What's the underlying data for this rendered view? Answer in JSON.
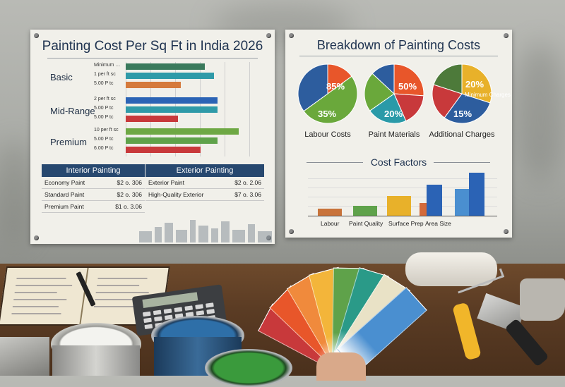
{
  "left_poster": {
    "title": "Painting Cost Per Sq Ft in India 2026",
    "tiers": [
      {
        "name": "Basic",
        "rows": [
          {
            "tag": "Minimum …",
            "color": "#3a7a5c",
            "value": 0.68
          },
          {
            "tag": "1 per ft sc",
            "color": "#2f9aa8",
            "value": 0.76
          },
          {
            "tag": "5.00 P tc",
            "color": "#d57a3c",
            "value": 0.47
          }
        ]
      },
      {
        "name": "Mid-Range",
        "rows": [
          {
            "tag": "2 per ft sc",
            "color": "#2b63b5",
            "value": 0.79
          },
          {
            "tag": "5.00 P tc",
            "color": "#2f9aa8",
            "value": 0.79
          },
          {
            "tag": "5.00 P tc",
            "color": "#c8393b",
            "value": 0.45
          }
        ]
      },
      {
        "name": "Premium",
        "rows": [
          {
            "tag": "10 per ft sc",
            "color": "#6ea844",
            "value": 0.97
          },
          {
            "tag": "5.00 P tc",
            "color": "#5fa24a",
            "value": 0.79
          },
          {
            "tag": "6.00 P tc",
            "color": "#c8393b",
            "value": 0.64
          }
        ]
      }
    ],
    "interior_table": {
      "header": "Interior Painting",
      "rows": [
        {
          "item": "Economy Paint",
          "price": "$2 o. 306"
        },
        {
          "item": "Standard Paint",
          "price": "$2 o. 306"
        },
        {
          "item": "Premium Paint",
          "price": "$1 o. 3.06"
        }
      ]
    },
    "exterior_table": {
      "header": "Exterior Painting",
      "rows": [
        {
          "item": "Exterior Paint",
          "price": "$2 o. 2.06"
        },
        {
          "item": "High-Quality Exterior",
          "price": "$7 o. 3.06"
        }
      ]
    }
  },
  "right_poster": {
    "title": "Breakdown of Painting Costs",
    "pies": [
      {
        "label": "Labour Costs",
        "slices": [
          {
            "value": 15,
            "color": "#e8562a"
          },
          {
            "value": 50,
            "color": "#6aa83b"
          },
          {
            "value": 35,
            "color": "#2d5d9e"
          }
        ],
        "pct_texts": [
          "85%",
          "35%"
        ]
      },
      {
        "label": "Paint Materials",
        "slices": [
          {
            "value": 30,
            "color": "#e8562a"
          },
          {
            "value": 20,
            "color": "#c8393b"
          },
          {
            "value": 25,
            "color": "#2a9aa8"
          },
          {
            "value": 25,
            "color": "#6aa83b"
          },
          {
            "value": 15,
            "color": "#2d5d9e"
          }
        ],
        "pct_texts": [
          "50%",
          "20%"
        ]
      },
      {
        "label": "Additional Charges",
        "slices": [
          {
            "value": 30,
            "color": "#e8b12a"
          },
          {
            "value": 30,
            "color": "#2d5d9e"
          },
          {
            "value": 20,
            "color": "#c8393b"
          },
          {
            "value": 20,
            "color": "#4d7a3a"
          }
        ],
        "pct_texts": [
          "20%",
          "15%"
        ],
        "small_text": "Minimum Charges"
      }
    ],
    "cost_factors": {
      "title": "Cost Factors",
      "categories": [
        "Labour",
        "Paint Quality",
        "Surface Prep",
        "Area Size"
      ],
      "bars": [
        {
          "value": 0.15,
          "color": "#c8733a"
        },
        {
          "value": 0.22,
          "color": "#5fa24a"
        },
        {
          "value": 0.44,
          "color": "#e8b12a"
        },
        {
          "value": 0.28,
          "color": "#d36a3a"
        },
        {
          "value": 0.68,
          "color": "#2b63b5"
        },
        {
          "value": 0.6,
          "color": "#4a8fd0"
        },
        {
          "value": 0.95,
          "color": "#2b63b5"
        }
      ]
    }
  },
  "swatches": [
    "#c8393b",
    "#e8562a",
    "#f08a3c",
    "#f3b53a",
    "#5fa24a",
    "#2a9a88",
    "#e9e2c6",
    "#4a8fd0"
  ]
}
